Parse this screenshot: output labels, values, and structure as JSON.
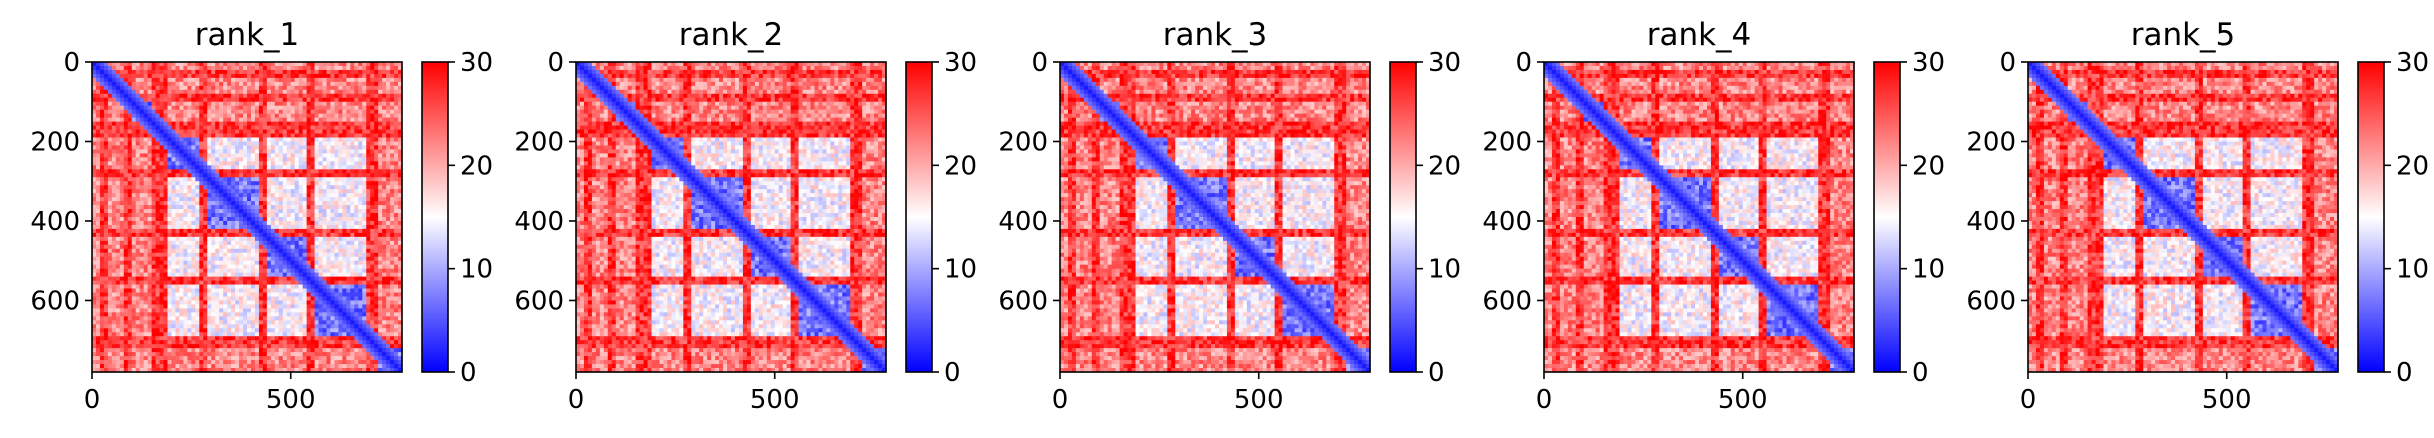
{
  "chart_data": [
    {
      "type": "heatmap",
      "title": "rank_1",
      "n": 780,
      "xticks": [
        0,
        500
      ],
      "yticks": [
        0,
        200,
        400,
        600
      ],
      "colorbar": {
        "range": [
          0,
          30
        ],
        "ticks": [
          0,
          10,
          20,
          30
        ]
      },
      "colormap": {
        "low": "#0000ff",
        "mid": "#ffffff",
        "high": "#ff0000"
      },
      "domains": [
        [
          0,
          30
        ],
        [
          30,
          90
        ],
        [
          90,
          160
        ],
        [
          190,
          270
        ],
        [
          290,
          420
        ],
        [
          440,
          545
        ],
        [
          560,
          700
        ],
        [
          715,
          780
        ]
      ],
      "bands": [
        30,
        90,
        160,
        175,
        280,
        430,
        545,
        700,
        715
      ],
      "diag_width": 30
    },
    {
      "type": "heatmap",
      "title": "rank_2",
      "n": 780,
      "xticks": [
        0,
        500
      ],
      "yticks": [
        0,
        200,
        400,
        600
      ],
      "colorbar": {
        "range": [
          0,
          30
        ],
        "ticks": [
          0,
          10,
          20,
          30
        ]
      },
      "colormap": {
        "low": "#0000ff",
        "mid": "#ffffff",
        "high": "#ff0000"
      },
      "domains": [
        [
          0,
          30
        ],
        [
          30,
          90
        ],
        [
          90,
          160
        ],
        [
          190,
          270
        ],
        [
          290,
          420
        ],
        [
          440,
          545
        ],
        [
          560,
          700
        ],
        [
          715,
          780
        ]
      ],
      "bands": [
        30,
        90,
        160,
        175,
        280,
        430,
        545,
        700,
        715
      ],
      "diag_width": 30
    },
    {
      "type": "heatmap",
      "title": "rank_3",
      "n": 780,
      "xticks": [
        0,
        500
      ],
      "yticks": [
        0,
        200,
        400,
        600
      ],
      "colorbar": {
        "range": [
          0,
          30
        ],
        "ticks": [
          0,
          10,
          20,
          30
        ]
      },
      "colormap": {
        "low": "#0000ff",
        "mid": "#ffffff",
        "high": "#ff0000"
      },
      "domains": [
        [
          0,
          30
        ],
        [
          30,
          90
        ],
        [
          90,
          160
        ],
        [
          190,
          270
        ],
        [
          290,
          420
        ],
        [
          440,
          545
        ],
        [
          560,
          700
        ],
        [
          715,
          780
        ]
      ],
      "bands": [
        30,
        90,
        160,
        175,
        280,
        430,
        545,
        700,
        715
      ],
      "diag_width": 30
    },
    {
      "type": "heatmap",
      "title": "rank_4",
      "n": 780,
      "xticks": [
        0,
        500
      ],
      "yticks": [
        0,
        200,
        400,
        600
      ],
      "colorbar": {
        "range": [
          0,
          30
        ],
        "ticks": [
          0,
          10,
          20,
          30
        ]
      },
      "colormap": {
        "low": "#0000ff",
        "mid": "#ffffff",
        "high": "#ff0000"
      },
      "domains": [
        [
          0,
          30
        ],
        [
          30,
          90
        ],
        [
          90,
          160
        ],
        [
          190,
          270
        ],
        [
          290,
          420
        ],
        [
          440,
          545
        ],
        [
          560,
          700
        ],
        [
          715,
          780
        ]
      ],
      "bands": [
        30,
        90,
        160,
        175,
        280,
        430,
        545,
        700,
        715
      ],
      "diag_width": 30
    },
    {
      "type": "heatmap",
      "title": "rank_5",
      "n": 780,
      "xticks": [
        0,
        500
      ],
      "yticks": [
        0,
        200,
        400,
        600
      ],
      "colorbar": {
        "range": [
          0,
          30
        ],
        "ticks": [
          0,
          10,
          20,
          30
        ]
      },
      "colormap": {
        "low": "#0000ff",
        "mid": "#ffffff",
        "high": "#ff0000"
      },
      "domains": [
        [
          0,
          30
        ],
        [
          30,
          90
        ],
        [
          90,
          160
        ],
        [
          190,
          270
        ],
        [
          290,
          420
        ],
        [
          440,
          545
        ],
        [
          560,
          700
        ],
        [
          715,
          780
        ]
      ],
      "bands": [
        30,
        90,
        160,
        175,
        280,
        430,
        545,
        700,
        715
      ],
      "diag_width": 30
    }
  ]
}
